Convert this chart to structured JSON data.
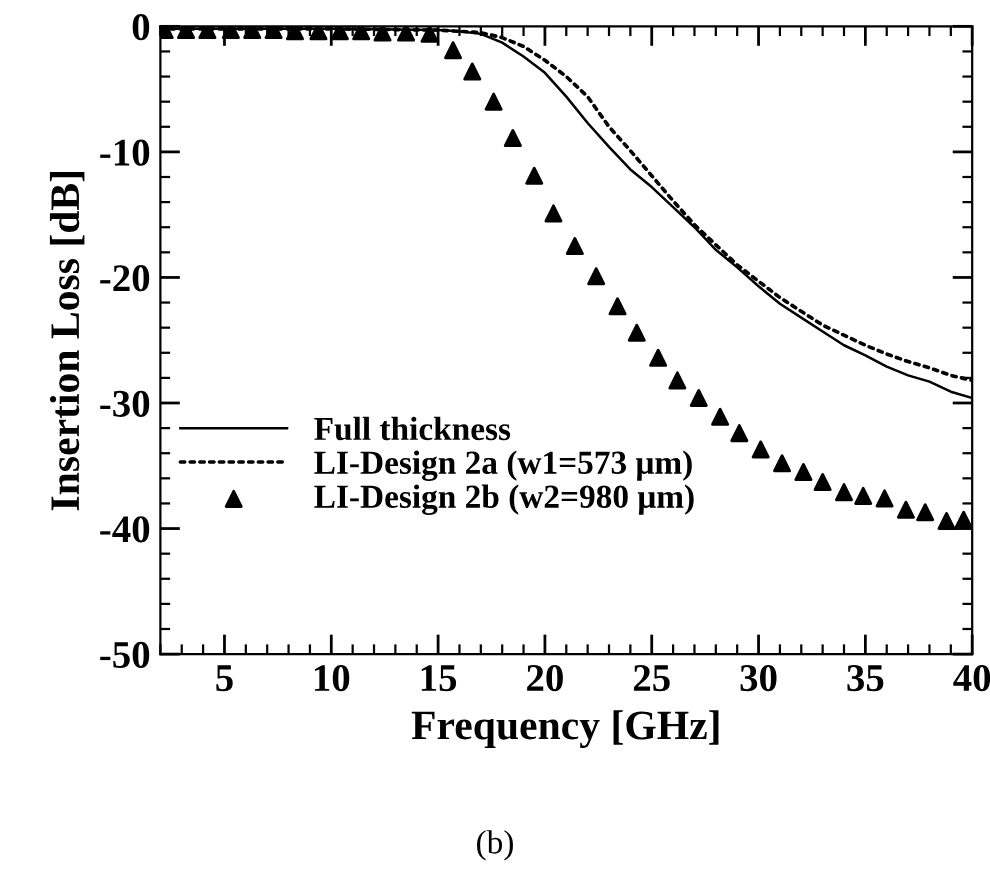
{
  "chart_data": {
    "type": "line",
    "xlabel": "Frequency [GHz]",
    "ylabel": "Insertion Loss [dB]",
    "annotations": [
      "(b)"
    ],
    "xlim": [
      2,
      40
    ],
    "xticks": [
      5,
      10,
      15,
      20,
      25,
      30,
      35,
      40
    ],
    "ylim": [
      -50,
      0
    ],
    "yticks": [
      -50,
      -40,
      -30,
      -20,
      -10,
      0
    ],
    "grid": false,
    "legend": "left",
    "series": [
      {
        "name": "Full thickness",
        "color": "#000000",
        "line_style": "solid",
        "marker": "none",
        "x": [
          2,
          5,
          10,
          15,
          16,
          17,
          18,
          19,
          20,
          21,
          22,
          23,
          24,
          25,
          26,
          27,
          28,
          29,
          30,
          31,
          32,
          33,
          34,
          35,
          36,
          37,
          38,
          39,
          40
        ],
        "values": [
          -0.2,
          -0.2,
          -0.2,
          -0.3,
          -0.4,
          -0.6,
          -1.3,
          -2.4,
          -3.7,
          -5.6,
          -7.7,
          -9.6,
          -11.4,
          -12.8,
          -14.4,
          -16.0,
          -17.8,
          -19.2,
          -20.7,
          -22.1,
          -23.2,
          -24.3,
          -25.4,
          -26.2,
          -27.1,
          -27.8,
          -28.3,
          -29.1,
          -29.6
        ]
      },
      {
        "name": "LI-Design 2a (w1=573 μm)",
        "color": "#000000",
        "line_style": "dotted",
        "marker": "none",
        "x": [
          2,
          5,
          10,
          15,
          16,
          17,
          18,
          19,
          20,
          21,
          22,
          23,
          24,
          25,
          26,
          27,
          28,
          29,
          30,
          31,
          32,
          33,
          34,
          35,
          36,
          37,
          38,
          39,
          40
        ],
        "values": [
          -0.2,
          -0.2,
          -0.2,
          -0.3,
          -0.4,
          -0.5,
          -0.9,
          -1.6,
          -2.7,
          -4.0,
          -5.6,
          -8.0,
          -9.9,
          -11.9,
          -13.9,
          -15.8,
          -17.4,
          -19.0,
          -20.3,
          -21.6,
          -22.7,
          -23.8,
          -24.6,
          -25.4,
          -26.1,
          -26.7,
          -27.2,
          -27.8,
          -28.2
        ]
      },
      {
        "name": "LI-Design 2b (w2=980 μm)",
        "color": "#000000",
        "type": "scatter",
        "marker": "triangle",
        "x": [
          2.2,
          3.2,
          4.2,
          5.3,
          6.3,
          7.3,
          8.3,
          9.4,
          10.4,
          11.4,
          12.4,
          13.5,
          14.6,
          15.7,
          16.6,
          17.6,
          18.5,
          19.5,
          20.4,
          21.4,
          22.4,
          23.4,
          24.3,
          25.3,
          26.2,
          27.2,
          28.2,
          29.1,
          30.1,
          31.1,
          32.1,
          33.0,
          34.0,
          34.9,
          35.9,
          36.9,
          37.8,
          38.8,
          39.6
        ],
        "values": [
          -0.3,
          -0.3,
          -0.3,
          -0.3,
          -0.3,
          -0.3,
          -0.4,
          -0.4,
          -0.4,
          -0.4,
          -0.5,
          -0.5,
          -0.6,
          -1.9,
          -3.6,
          -6.0,
          -8.9,
          -11.9,
          -14.9,
          -17.5,
          -19.9,
          -22.3,
          -24.4,
          -26.4,
          -28.2,
          -29.6,
          -31.1,
          -32.4,
          -33.7,
          -34.8,
          -35.5,
          -36.3,
          -37.1,
          -37.4,
          -37.6,
          -38.5,
          -38.7,
          -39.4,
          -39.3
        ]
      }
    ]
  }
}
